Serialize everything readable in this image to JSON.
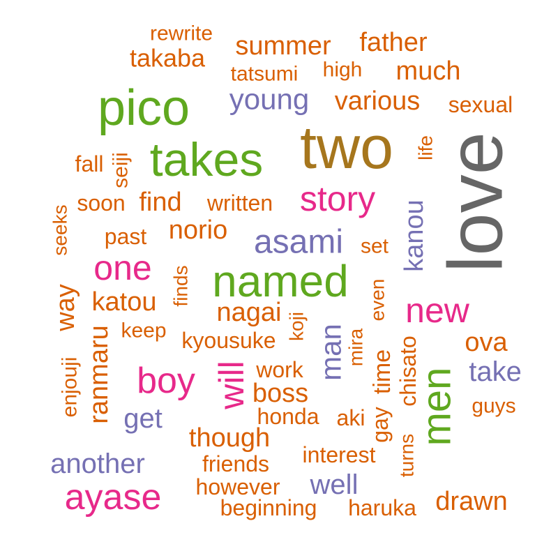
{
  "colors": {
    "orange": "#d95f02",
    "green": "#5fa81f",
    "brown": "#a6761d",
    "gray": "#666666",
    "purple": "#7570b3",
    "pink": "#e7298a"
  },
  "words": [
    {
      "id": "love",
      "text": "love",
      "color": "gray"
    },
    {
      "id": "two",
      "text": "two",
      "color": "brown"
    },
    {
      "id": "pico",
      "text": "pico",
      "color": "green"
    },
    {
      "id": "takes",
      "text": "takes",
      "color": "green"
    },
    {
      "id": "named",
      "text": "named",
      "color": "green"
    },
    {
      "id": "men",
      "text": "men",
      "color": "green"
    },
    {
      "id": "ayase",
      "text": "ayase",
      "color": "pink"
    },
    {
      "id": "boy",
      "text": "boy",
      "color": "pink"
    },
    {
      "id": "story",
      "text": "story",
      "color": "pink"
    },
    {
      "id": "one",
      "text": "one",
      "color": "pink"
    },
    {
      "id": "new",
      "text": "new",
      "color": "pink"
    },
    {
      "id": "will",
      "text": "will",
      "color": "pink"
    },
    {
      "id": "asami",
      "text": "asami",
      "color": "purple"
    },
    {
      "id": "young",
      "text": "young",
      "color": "purple"
    },
    {
      "id": "another",
      "text": "another",
      "color": "purple"
    },
    {
      "id": "well",
      "text": "well",
      "color": "purple"
    },
    {
      "id": "take",
      "text": "take",
      "color": "purple"
    },
    {
      "id": "get",
      "text": "get",
      "color": "purple"
    },
    {
      "id": "man",
      "text": "man",
      "color": "purple"
    },
    {
      "id": "kanou",
      "text": "kanou",
      "color": "purple"
    },
    {
      "id": "rewrite",
      "text": "rewrite",
      "color": "orange"
    },
    {
      "id": "summer",
      "text": "summer",
      "color": "orange"
    },
    {
      "id": "father",
      "text": "father",
      "color": "orange"
    },
    {
      "id": "takaba",
      "text": "takaba",
      "color": "orange"
    },
    {
      "id": "tatsumi",
      "text": "tatsumi",
      "color": "orange"
    },
    {
      "id": "high",
      "text": "high",
      "color": "orange"
    },
    {
      "id": "much",
      "text": "much",
      "color": "orange"
    },
    {
      "id": "various",
      "text": "various",
      "color": "orange"
    },
    {
      "id": "sexual",
      "text": "sexual",
      "color": "orange"
    },
    {
      "id": "fall",
      "text": "fall",
      "color": "orange"
    },
    {
      "id": "seiji",
      "text": "seiji",
      "color": "orange"
    },
    {
      "id": "life",
      "text": "life",
      "color": "orange"
    },
    {
      "id": "soon",
      "text": "soon",
      "color": "orange"
    },
    {
      "id": "find",
      "text": "find",
      "color": "orange"
    },
    {
      "id": "written",
      "text": "written",
      "color": "orange"
    },
    {
      "id": "seeks",
      "text": "seeks",
      "color": "orange"
    },
    {
      "id": "past",
      "text": "past",
      "color": "orange"
    },
    {
      "id": "norio",
      "text": "norio",
      "color": "orange"
    },
    {
      "id": "set",
      "text": "set",
      "color": "orange"
    },
    {
      "id": "finds",
      "text": "finds",
      "color": "orange"
    },
    {
      "id": "katou",
      "text": "katou",
      "color": "orange"
    },
    {
      "id": "way",
      "text": "way",
      "color": "orange"
    },
    {
      "id": "nagai",
      "text": "nagai",
      "color": "orange"
    },
    {
      "id": "even",
      "text": "even",
      "color": "orange"
    },
    {
      "id": "keep",
      "text": "keep",
      "color": "orange"
    },
    {
      "id": "koji",
      "text": "koji",
      "color": "orange"
    },
    {
      "id": "kyousuke",
      "text": "kyousuke",
      "color": "orange"
    },
    {
      "id": "ranmaru",
      "text": "ranmaru",
      "color": "orange"
    },
    {
      "id": "ova",
      "text": "ova",
      "color": "orange"
    },
    {
      "id": "mira",
      "text": "mira",
      "color": "orange"
    },
    {
      "id": "time",
      "text": "time",
      "color": "orange"
    },
    {
      "id": "chisato",
      "text": "chisato",
      "color": "orange"
    },
    {
      "id": "enjouji",
      "text": "enjouji",
      "color": "orange"
    },
    {
      "id": "work",
      "text": "work",
      "color": "orange"
    },
    {
      "id": "boss",
      "text": "boss",
      "color": "orange"
    },
    {
      "id": "guys",
      "text": "guys",
      "color": "orange"
    },
    {
      "id": "honda",
      "text": "honda",
      "color": "orange"
    },
    {
      "id": "aki",
      "text": "aki",
      "color": "orange"
    },
    {
      "id": "gay",
      "text": "gay",
      "color": "orange"
    },
    {
      "id": "turns",
      "text": "turns",
      "color": "orange"
    },
    {
      "id": "though",
      "text": "though",
      "color": "orange"
    },
    {
      "id": "interest",
      "text": "interest",
      "color": "orange"
    },
    {
      "id": "friends",
      "text": "friends",
      "color": "orange"
    },
    {
      "id": "however",
      "text": "however",
      "color": "orange"
    },
    {
      "id": "drawn",
      "text": "drawn",
      "color": "orange"
    },
    {
      "id": "beginning",
      "text": "beginning",
      "color": "orange"
    },
    {
      "id": "haruka",
      "text": "haruka",
      "color": "orange"
    }
  ]
}
